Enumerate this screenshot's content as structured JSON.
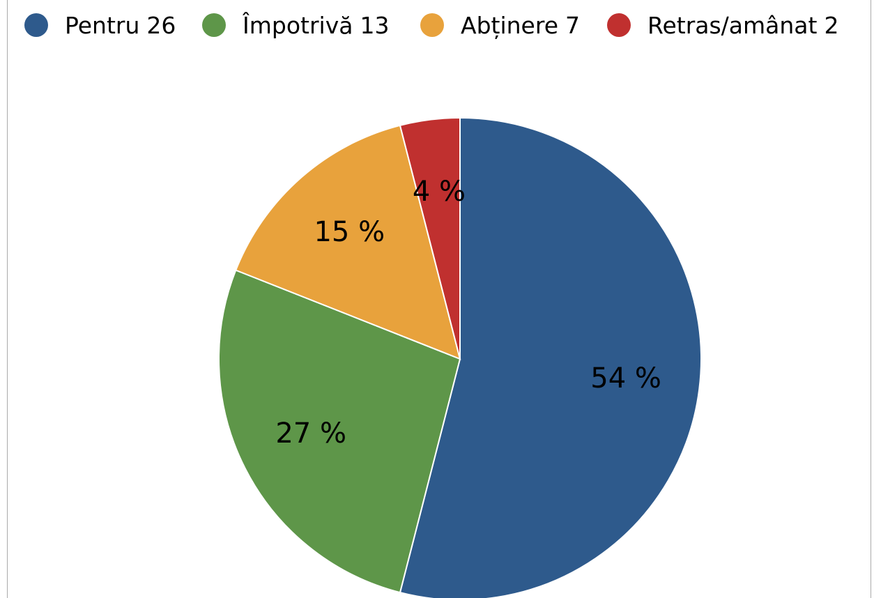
{
  "chart_data": {
    "type": "pie",
    "categories": [
      "Pentru",
      "Împotrivă",
      "Abținere",
      "Retras/amânat"
    ],
    "counts": [
      26,
      13,
      7,
      2
    ],
    "values": [
      54,
      27,
      15,
      4
    ],
    "value_labels": [
      "54 %",
      "27 %",
      "15 %",
      "4 %"
    ],
    "colors": [
      "#2e5a8c",
      "#5e9649",
      "#e8a23c",
      "#c0302f"
    ],
    "legend": "top"
  }
}
